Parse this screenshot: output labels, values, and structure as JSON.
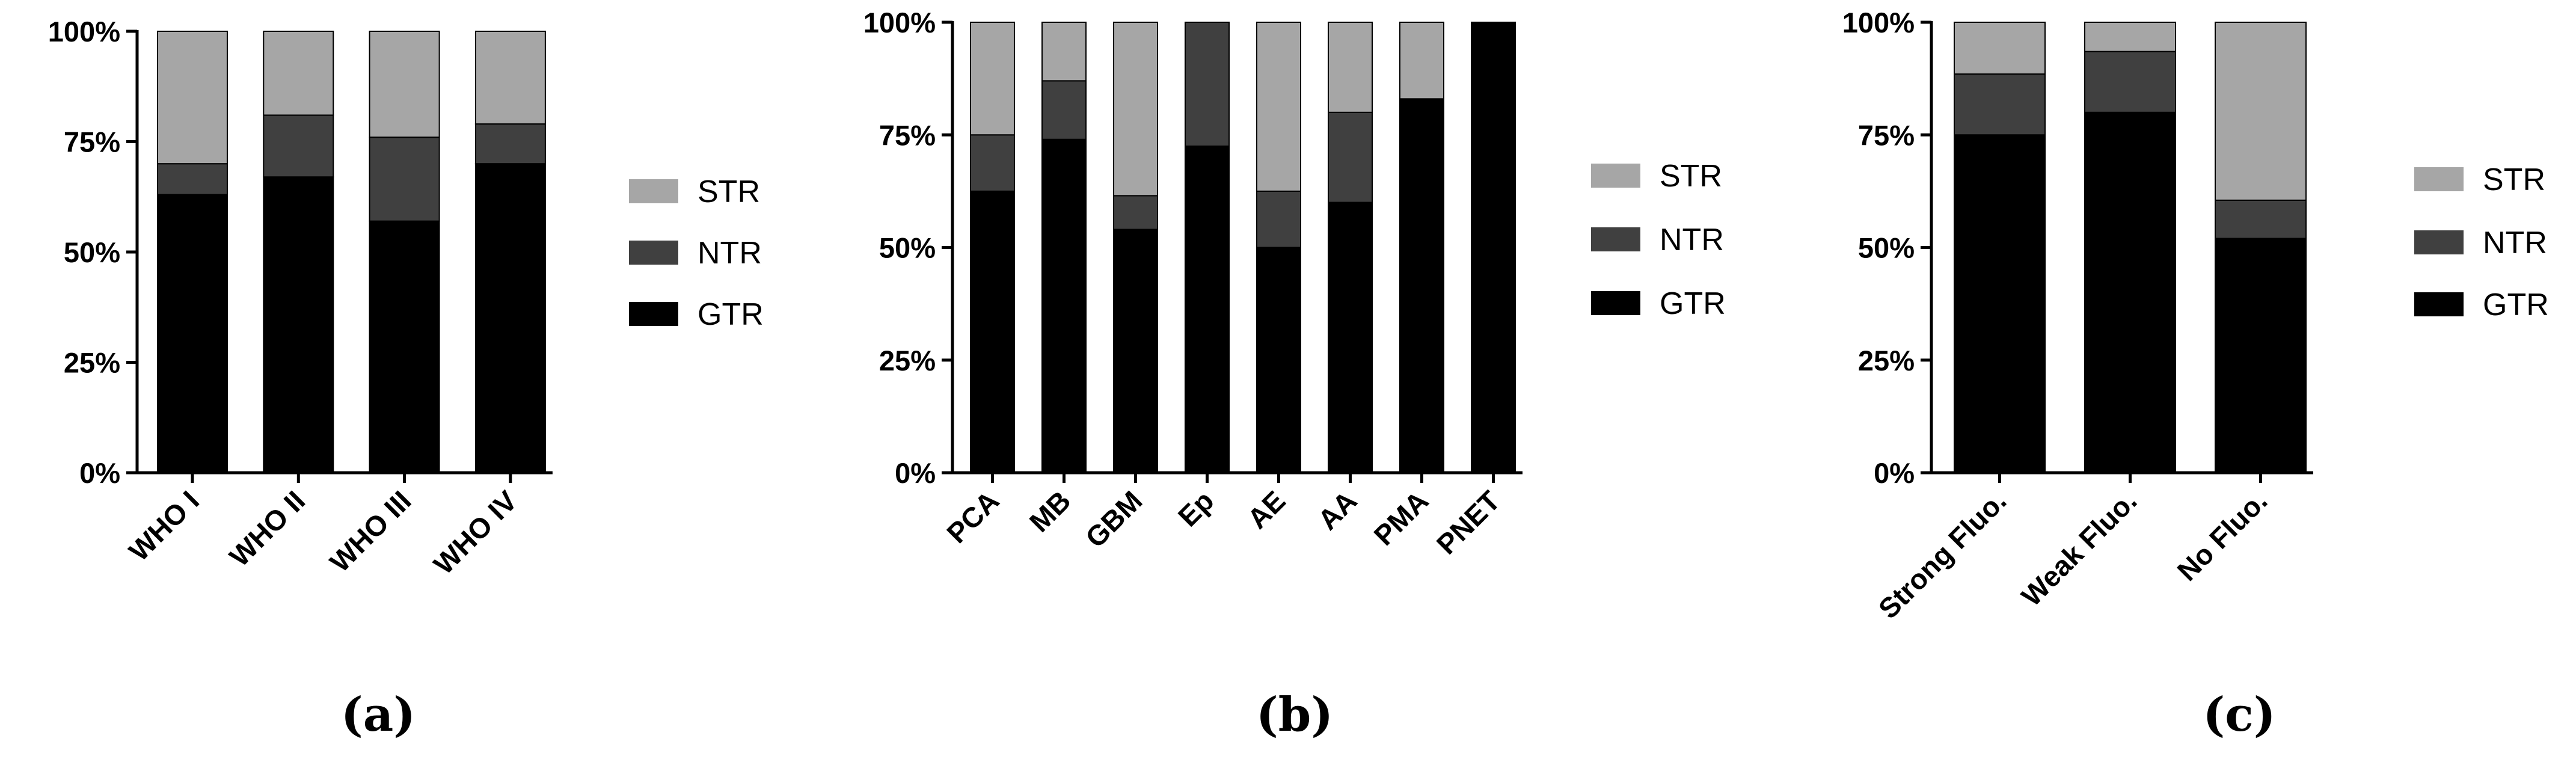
{
  "chart_data": [
    {
      "type": "bar",
      "stacked": true,
      "panel_label": "(a)",
      "categories": [
        "WHO I",
        "WHO II",
        "WHO III",
        "WHO IV"
      ],
      "series": [
        {
          "name": "GTR",
          "color": "#000000",
          "values": [
            63,
            67,
            57,
            70
          ]
        },
        {
          "name": "NTR",
          "color": "#404040",
          "values": [
            7,
            14,
            19,
            9
          ]
        },
        {
          "name": "STR",
          "color": "#a6a6a6",
          "values": [
            30,
            19,
            24,
            21
          ]
        }
      ],
      "yticks": [
        "0%",
        "25%",
        "50%",
        "75%",
        "100%"
      ],
      "ylim": [
        0,
        100
      ],
      "legend": [
        "STR",
        "NTR",
        "GTR"
      ],
      "legend_position": "right",
      "grid": false
    },
    {
      "type": "bar",
      "stacked": true,
      "panel_label": "(b)",
      "categories": [
        "PCA",
        "MB",
        "GBM",
        "Ep",
        "AE",
        "AA",
        "PMA",
        "PNET"
      ],
      "series": [
        {
          "name": "GTR",
          "color": "#000000",
          "values": [
            62.5,
            74,
            54,
            72.5,
            50,
            60,
            83,
            100
          ]
        },
        {
          "name": "NTR",
          "color": "#404040",
          "values": [
            12.5,
            13,
            7.5,
            27.5,
            12.5,
            20,
            0,
            0
          ]
        },
        {
          "name": "STR",
          "color": "#a6a6a6",
          "values": [
            25,
            13,
            38.5,
            0,
            37.5,
            20,
            17,
            0
          ]
        }
      ],
      "yticks": [
        "0%",
        "25%",
        "50%",
        "75%",
        "100%"
      ],
      "ylim": [
        0,
        100
      ],
      "legend": [
        "STR",
        "NTR",
        "GTR"
      ],
      "legend_position": "right",
      "grid": false
    },
    {
      "type": "bar",
      "stacked": true,
      "panel_label": "(c)",
      "categories": [
        "Strong Fluo.",
        "Weak Fluo.",
        "No Fluo."
      ],
      "series": [
        {
          "name": "GTR",
          "color": "#000000",
          "values": [
            75,
            80,
            52
          ]
        },
        {
          "name": "NTR",
          "color": "#404040",
          "values": [
            13.5,
            13.5,
            8.5
          ]
        },
        {
          "name": "STR",
          "color": "#a6a6a6",
          "values": [
            11.5,
            6.5,
            39.5
          ]
        }
      ],
      "yticks": [
        "0%",
        "25%",
        "50%",
        "75%",
        "100%"
      ],
      "ylim": [
        0,
        100
      ],
      "legend": [
        "STR",
        "NTR",
        "GTR"
      ],
      "legend_position": "right",
      "grid": false
    }
  ]
}
